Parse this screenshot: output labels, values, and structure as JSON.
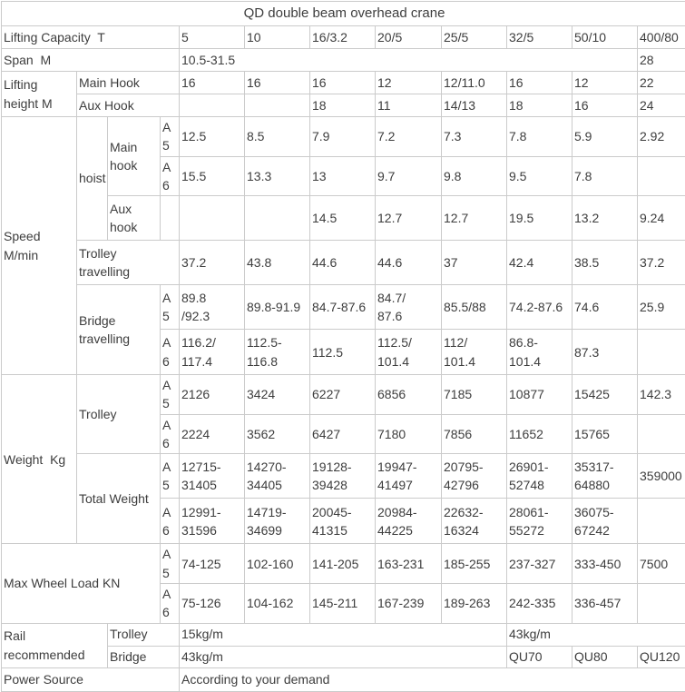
{
  "title": "QD double beam overhead crane",
  "table": {
    "rows": [
      {
        "cells": [
          {
            "t": "QD double beam overhead crane",
            "cs": 12,
            "al": "c",
            "n": "table-title"
          }
        ]
      },
      {
        "cells": [
          {
            "t": "Lifting Capacity  T",
            "cs": 4,
            "n": "row-label-lifting-capacity"
          },
          {
            "t": "5"
          },
          {
            "t": "10"
          },
          {
            "t": "16/3.2"
          },
          {
            "t": "20/5"
          },
          {
            "t": "25/5"
          },
          {
            "t": "32/5"
          },
          {
            "t": "50/10"
          },
          {
            "t": "400/80"
          }
        ]
      },
      {
        "cells": [
          {
            "t": "Span  M",
            "cs": 4,
            "n": "row-label-span"
          },
          {
            "t": "10.5-31.5",
            "cs": 7
          },
          {
            "t": "28"
          }
        ]
      },
      {
        "cells": [
          {
            "t": "Lifting\nheight M",
            "rs": 2,
            "n": "row-label-lifting-height"
          },
          {
            "t": "Main Hook",
            "cs": 3,
            "n": "row-label-main-hook"
          },
          {
            "t": "16"
          },
          {
            "t": "16"
          },
          {
            "t": "16"
          },
          {
            "t": "12"
          },
          {
            "t": "12/11.0"
          },
          {
            "t": "16"
          },
          {
            "t": "12"
          },
          {
            "t": "22"
          }
        ]
      },
      {
        "cells": [
          {
            "t": "Aux Hook",
            "cs": 3,
            "n": "row-label-aux-hook"
          },
          {
            "t": ""
          },
          {
            "t": ""
          },
          {
            "t": "18"
          },
          {
            "t": "11"
          },
          {
            "t": "14/13"
          },
          {
            "t": "18"
          },
          {
            "t": "16"
          },
          {
            "t": "24"
          }
        ]
      },
      {
        "cells": [
          {
            "t": "Speed\nM/min",
            "rs": 6,
            "n": "row-label-speed"
          },
          {
            "t": "hoist",
            "rs": 3,
            "n": "row-label-hoist"
          },
          {
            "t": "Main\nhook",
            "rs": 2,
            "n": "row-label-hoist-main-hook"
          },
          {
            "t": "A5",
            "n": "grade-label"
          },
          {
            "t": "12.5"
          },
          {
            "t": "8.5"
          },
          {
            "t": "7.9"
          },
          {
            "t": "7.2"
          },
          {
            "t": "7.3"
          },
          {
            "t": "7.8"
          },
          {
            "t": "5.9"
          },
          {
            "t": "2.92"
          }
        ]
      },
      {
        "cells": [
          {
            "t": "A6",
            "n": "grade-label"
          },
          {
            "t": "15.5"
          },
          {
            "t": "13.3"
          },
          {
            "t": "13"
          },
          {
            "t": "9.7"
          },
          {
            "t": "9.8"
          },
          {
            "t": "9.5"
          },
          {
            "t": "7.8"
          },
          {
            "t": ""
          }
        ]
      },
      {
        "cells": [
          {
            "t": "Aux\nhook",
            "n": "row-label-hoist-aux-hook"
          },
          {
            "t": ""
          },
          {
            "t": ""
          },
          {
            "t": ""
          },
          {
            "t": "14.5"
          },
          {
            "t": "12.7"
          },
          {
            "t": "12.7"
          },
          {
            "t": "19.5"
          },
          {
            "t": "13.2"
          },
          {
            "t": "9.24"
          }
        ]
      },
      {
        "cells": [
          {
            "t": "Trolley\ntravelling",
            "cs": 3,
            "n": "row-label-trolley-travelling"
          },
          {
            "t": "37.2"
          },
          {
            "t": "43.8"
          },
          {
            "t": "44.6"
          },
          {
            "t": "44.6"
          },
          {
            "t": "37"
          },
          {
            "t": "42.4"
          },
          {
            "t": "38.5"
          },
          {
            "t": "37.2"
          }
        ]
      },
      {
        "cells": [
          {
            "t": "Bridge\ntravelling",
            "cs": 2,
            "rs": 2,
            "n": "row-label-bridge-travelling"
          },
          {
            "t": "A5",
            "n": "grade-label"
          },
          {
            "t": "89.8\n/92.3"
          },
          {
            "t": "89.8-91.9"
          },
          {
            "t": "84.7-87.6"
          },
          {
            "t": "84.7/\n87.6"
          },
          {
            "t": "85.5/88"
          },
          {
            "t": "74.2-87.6"
          },
          {
            "t": "74.6"
          },
          {
            "t": "25.9"
          }
        ]
      },
      {
        "cells": [
          {
            "t": "A6",
            "n": "grade-label"
          },
          {
            "t": "116.2/\n117.4"
          },
          {
            "t": "112.5-\n116.8"
          },
          {
            "t": "112.5"
          },
          {
            "t": "112.5/\n101.4"
          },
          {
            "t": "112/\n101.4"
          },
          {
            "t": "86.8-\n101.4"
          },
          {
            "t": "87.3"
          },
          {
            "t": ""
          }
        ]
      },
      {
        "cells": [
          {
            "t": "Weight  Kg",
            "rs": 4,
            "n": "row-label-weight"
          },
          {
            "t": "Trolley",
            "cs": 2,
            "rs": 2,
            "n": "row-label-weight-trolley"
          },
          {
            "t": "A5",
            "n": "grade-label"
          },
          {
            "t": "2126"
          },
          {
            "t": "3424"
          },
          {
            "t": "6227"
          },
          {
            "t": "6856"
          },
          {
            "t": "7185"
          },
          {
            "t": "10877"
          },
          {
            "t": "15425"
          },
          {
            "t": "142.3"
          }
        ]
      },
      {
        "cells": [
          {
            "t": "A6",
            "n": "grade-label"
          },
          {
            "t": "2224"
          },
          {
            "t": "3562"
          },
          {
            "t": "6427"
          },
          {
            "t": "7180"
          },
          {
            "t": "7856"
          },
          {
            "t": "11652"
          },
          {
            "t": "15765"
          },
          {
            "t": ""
          }
        ]
      },
      {
        "cells": [
          {
            "t": "Total Weight",
            "cs": 2,
            "rs": 2,
            "n": "row-label-total-weight"
          },
          {
            "t": "A5",
            "n": "grade-label"
          },
          {
            "t": "12715-\n31405"
          },
          {
            "t": "14270-\n34405"
          },
          {
            "t": "19128-\n39428"
          },
          {
            "t": "19947-\n41497"
          },
          {
            "t": "20795-\n42796"
          },
          {
            "t": "26901-\n52748"
          },
          {
            "t": "35317-\n64880"
          },
          {
            "t": "359000"
          }
        ]
      },
      {
        "cells": [
          {
            "t": "A6",
            "n": "grade-label"
          },
          {
            "t": "12991-\n31596"
          },
          {
            "t": "14719-\n34699"
          },
          {
            "t": "20045-\n41315"
          },
          {
            "t": "20984-\n44225"
          },
          {
            "t": "22632-\n16324"
          },
          {
            "t": "28061-\n55272"
          },
          {
            "t": "36075-\n67242"
          },
          {
            "t": ""
          }
        ]
      },
      {
        "cells": [
          {
            "t": "Max Wheel Load KN",
            "cs": 3,
            "rs": 2,
            "n": "row-label-max-wheel-load"
          },
          {
            "t": "A5",
            "n": "grade-label"
          },
          {
            "t": "74-125"
          },
          {
            "t": "102-160"
          },
          {
            "t": "141-205"
          },
          {
            "t": "163-231"
          },
          {
            "t": "185-255"
          },
          {
            "t": "237-327"
          },
          {
            "t": "333-450"
          },
          {
            "t": "7500"
          }
        ]
      },
      {
        "cells": [
          {
            "t": "A6",
            "n": "grade-label"
          },
          {
            "t": "75-126"
          },
          {
            "t": "104-162"
          },
          {
            "t": "145-211"
          },
          {
            "t": "167-239"
          },
          {
            "t": "189-263"
          },
          {
            "t": "242-335"
          },
          {
            "t": "336-457"
          },
          {
            "t": ""
          }
        ]
      },
      {
        "cells": [
          {
            "t": "Rail\nrecommended",
            "cs": 2,
            "rs": 2,
            "n": "row-label-rail-recommended"
          },
          {
            "t": "Trolley",
            "cs": 2,
            "n": "row-label-rail-trolley"
          },
          {
            "t": "15kg/m",
            "cs": 5
          },
          {
            "t": "43kg/m",
            "cs": 3
          }
        ]
      },
      {
        "cells": [
          {
            "t": "Bridge",
            "cs": 2,
            "n": "row-label-rail-bridge"
          },
          {
            "t": "43kg/m",
            "cs": 5
          },
          {
            "t": "QU70"
          },
          {
            "t": "QU80"
          },
          {
            "t": "QU120"
          }
        ]
      },
      {
        "cells": [
          {
            "t": "Power Source",
            "cs": 4,
            "n": "row-label-power-source"
          },
          {
            "t": "According to your demand",
            "cs": 8
          }
        ]
      }
    ]
  }
}
